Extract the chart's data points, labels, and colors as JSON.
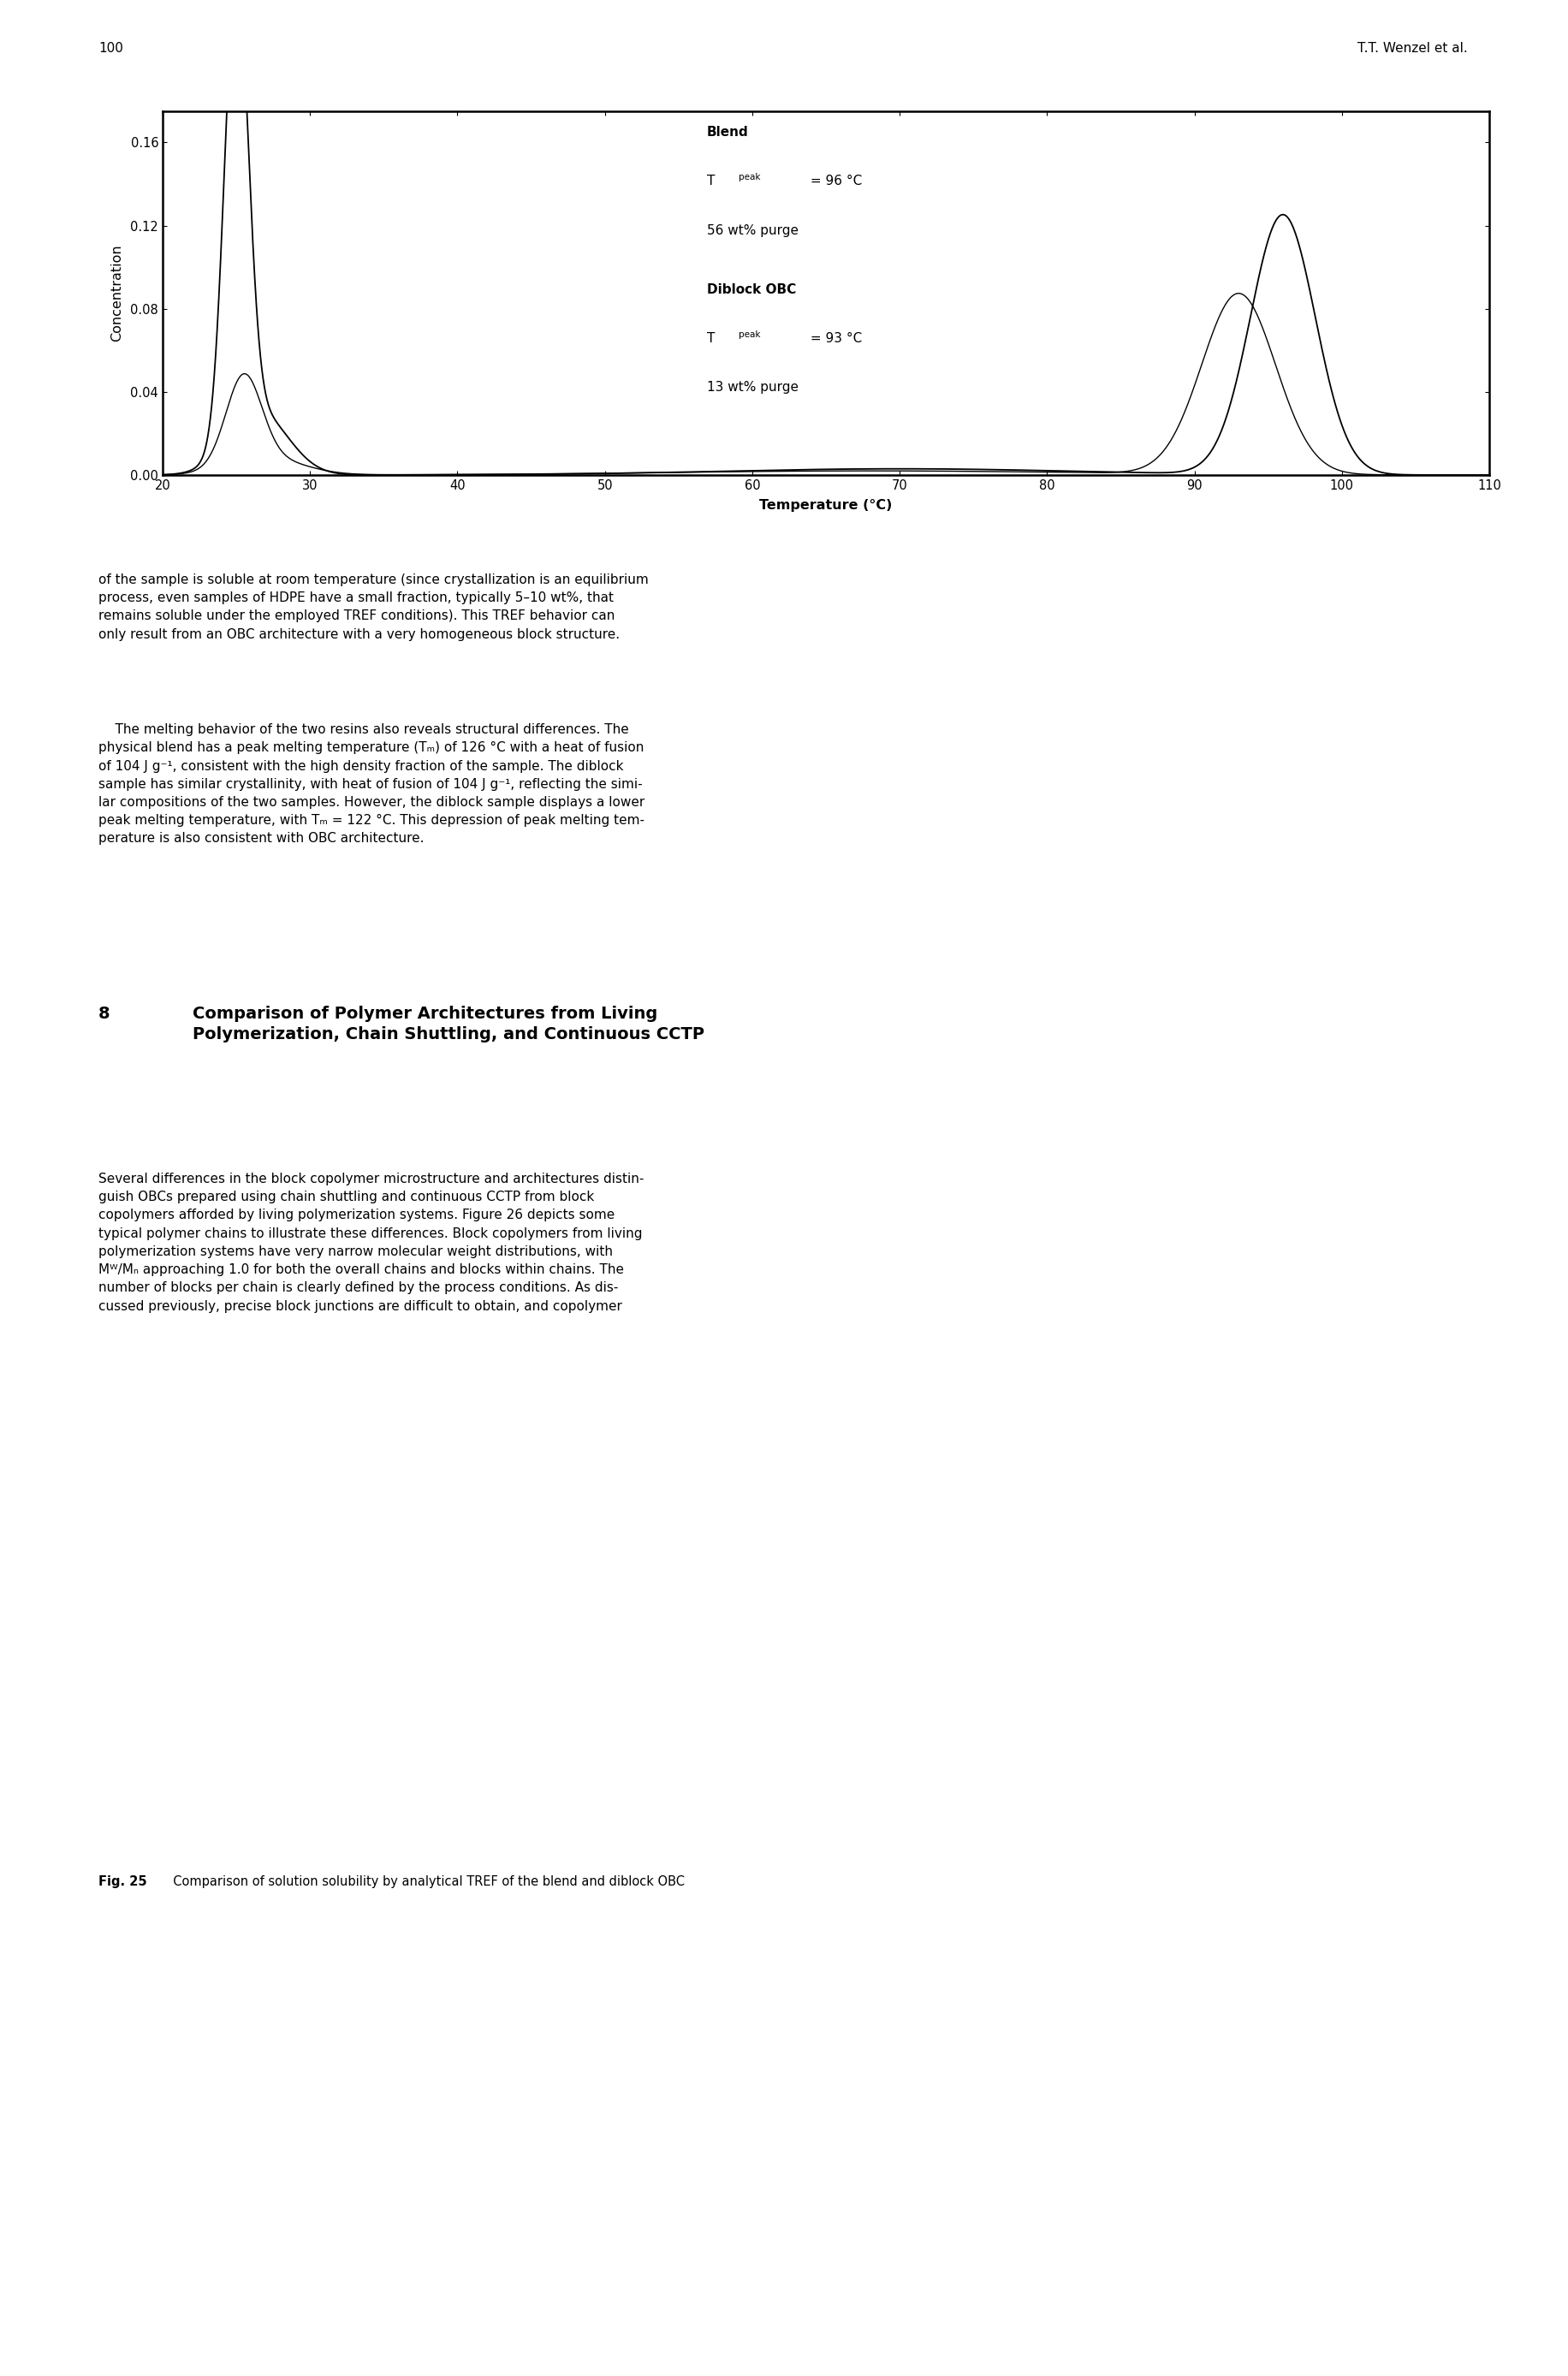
{
  "page_number": "100",
  "header_right": "T.T. Wenzel et al.",
  "chart": {
    "xlim": [
      20,
      110
    ],
    "ylim": [
      0.0,
      0.175
    ],
    "xticks": [
      20,
      30,
      40,
      50,
      60,
      70,
      80,
      90,
      100,
      110
    ],
    "yticks": [
      0.0,
      0.04,
      0.08,
      0.12,
      0.16
    ],
    "xlabel": "Temperature (°C)",
    "ylabel": "Concentration"
  },
  "fig_caption_bold": "Fig. 25",
  "fig_caption_rest": "  Comparison of solution solubility by analytical TREF of the blend and diblock OBC",
  "para1": "of the sample is soluble at room temperature (since crystallization is an equilibrium\nprocess, even samples of HDPE have a small fraction, typically 5–10 wt%, that\nremains soluble under the employed TREF conditions). This TREF behavior can\nonly result from an OBC architecture with a very homogeneous block structure.",
  "para2_indent": "    The melting behavior of the two resins also reveals structural differences. The\nphysical blend has a peak melting temperature (Tₘ) of 126 °C with a heat of fusion\nof 104 J g⁻¹, consistent with the high density fraction of the sample. The diblock\nsample has similar crystallinity, with heat of fusion of 104 J g⁻¹, reflecting the simi-\nlar compositions of the two samples. However, the diblock sample displays a lower\npeak melting temperature, with Tₘ = 122 °C. This depression of peak melting tem-\nperature is also consistent with OBC architecture.",
  "section_num": "8",
  "section_title": "Comparison of Polymer Architectures from Living\nPolymerization, Chain Shuttling, and Continuous CCTP",
  "para3": "Several differences in the block copolymer microstructure and architectures distin-\nguish OBCs prepared using chain shuttling and continuous CCTP from block\ncopolymers afforded by living polymerization systems. Figure 26 depicts some\ntypical polymer chains to illustrate these differences. Block copolymers from living\npolymerization systems have very narrow molecular weight distributions, with\nMᵂ/Mₙ approaching 1.0 for both the overall chains and blocks within chains. The\nnumber of blocks per chain is clearly defined by the process conditions. As dis-\ncussed previously, precise block junctions are difficult to obtain, and copolymer",
  "blend_annot_line1": "Blend",
  "blend_annot_line2a": "T",
  "blend_annot_line2b": "peak",
  "blend_annot_line2c": " = 96 °C",
  "blend_annot_line3": "56 wt% purge",
  "diblock_annot_line1": "Diblock OBC",
  "diblock_annot_line2a": "T",
  "diblock_annot_line2b": "peak",
  "diblock_annot_line2c": " = 93 °C",
  "diblock_annot_line3": "13 wt% purge"
}
